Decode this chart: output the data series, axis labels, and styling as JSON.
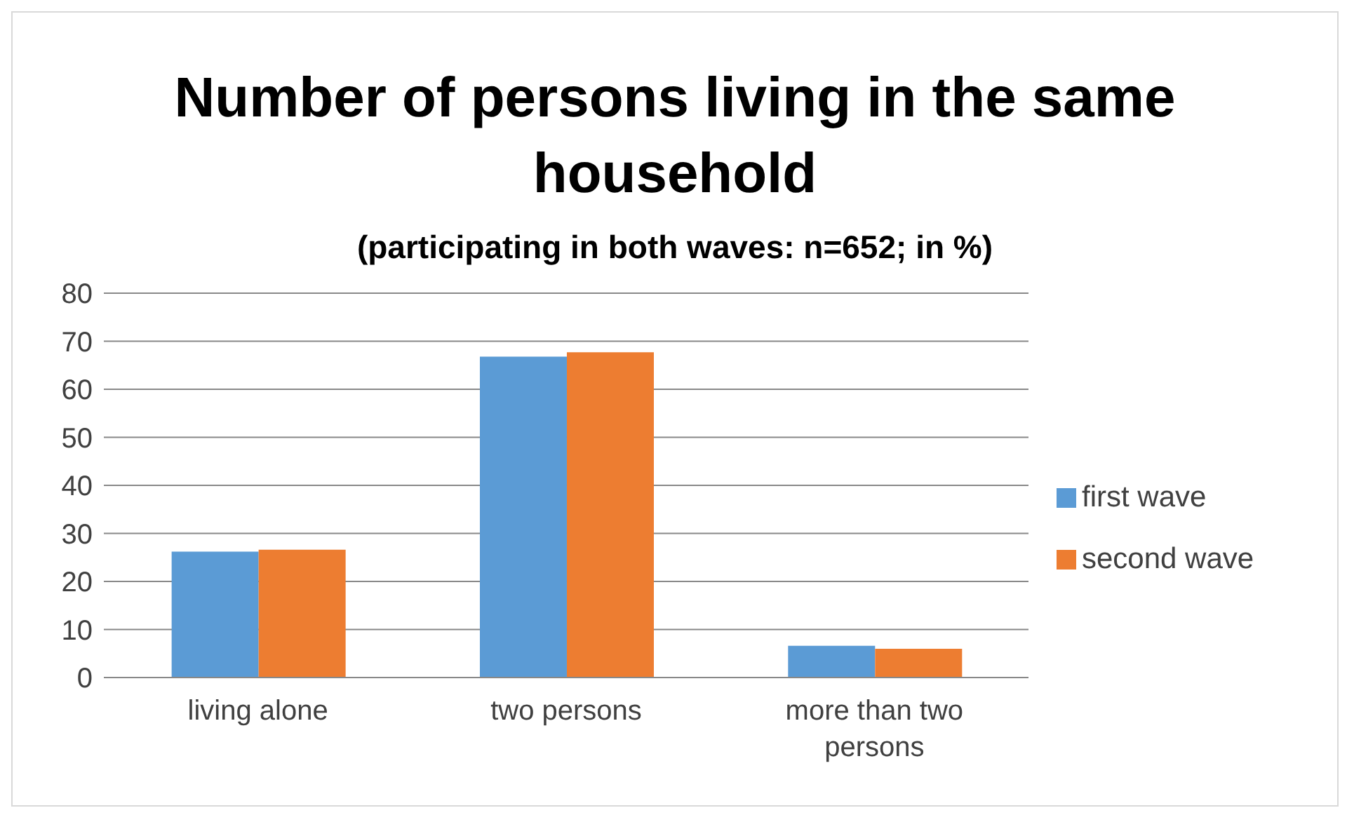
{
  "chart_data": {
    "type": "bar",
    "title": "Number of persons living in the same household",
    "subtitle": "(participating in both waves: n=652; in %)",
    "categories": [
      "living alone",
      "two persons",
      "more than two persons"
    ],
    "series": [
      {
        "name": "first wave",
        "color": "#5b9bd5",
        "values": [
          26.2,
          66.8,
          6.6
        ]
      },
      {
        "name": "second wave",
        "color": "#ed7d31",
        "values": [
          26.6,
          67.7,
          6.0
        ]
      }
    ],
    "ylim": [
      0,
      80
    ],
    "yticks": [
      0,
      10,
      20,
      30,
      40,
      50,
      60,
      70,
      80
    ],
    "grid": "y",
    "legend": "right"
  }
}
